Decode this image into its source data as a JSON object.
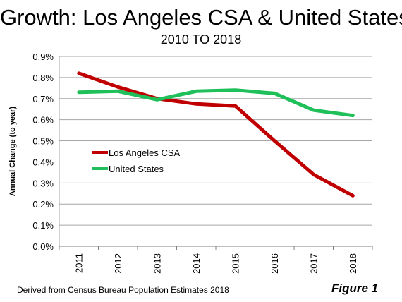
{
  "chart_data": {
    "type": "line",
    "title": "Growth: Los Angeles CSA & United States",
    "subtitle": "2010 TO 2018",
    "ylabel": "Annual Change (to year)",
    "xlabel": "",
    "categories": [
      "2011",
      "2012",
      "2013",
      "2014",
      "2015",
      "2016",
      "2017",
      "2018"
    ],
    "ylim": [
      0,
      0.9
    ],
    "yticks": [
      "0.0%",
      "0.1%",
      "0.2%",
      "0.3%",
      "0.4%",
      "0.5%",
      "0.6%",
      "0.7%",
      "0.8%",
      "0.9%"
    ],
    "grid": "horizontal",
    "legend_position": "center-left",
    "series": [
      {
        "name": "Los Angeles CSA",
        "color": "#c00000",
        "values": [
          0.82,
          0.755,
          0.7,
          0.675,
          0.665,
          0.5,
          0.34,
          0.24
        ]
      },
      {
        "name": "United States",
        "color": "#1fbf5a",
        "values": [
          0.73,
          0.735,
          0.695,
          0.735,
          0.74,
          0.725,
          0.645,
          0.62
        ]
      }
    ]
  },
  "footer": {
    "source": "Derived from Census Bureau Population Estimates 2018",
    "figure_label": "Figure 1"
  }
}
